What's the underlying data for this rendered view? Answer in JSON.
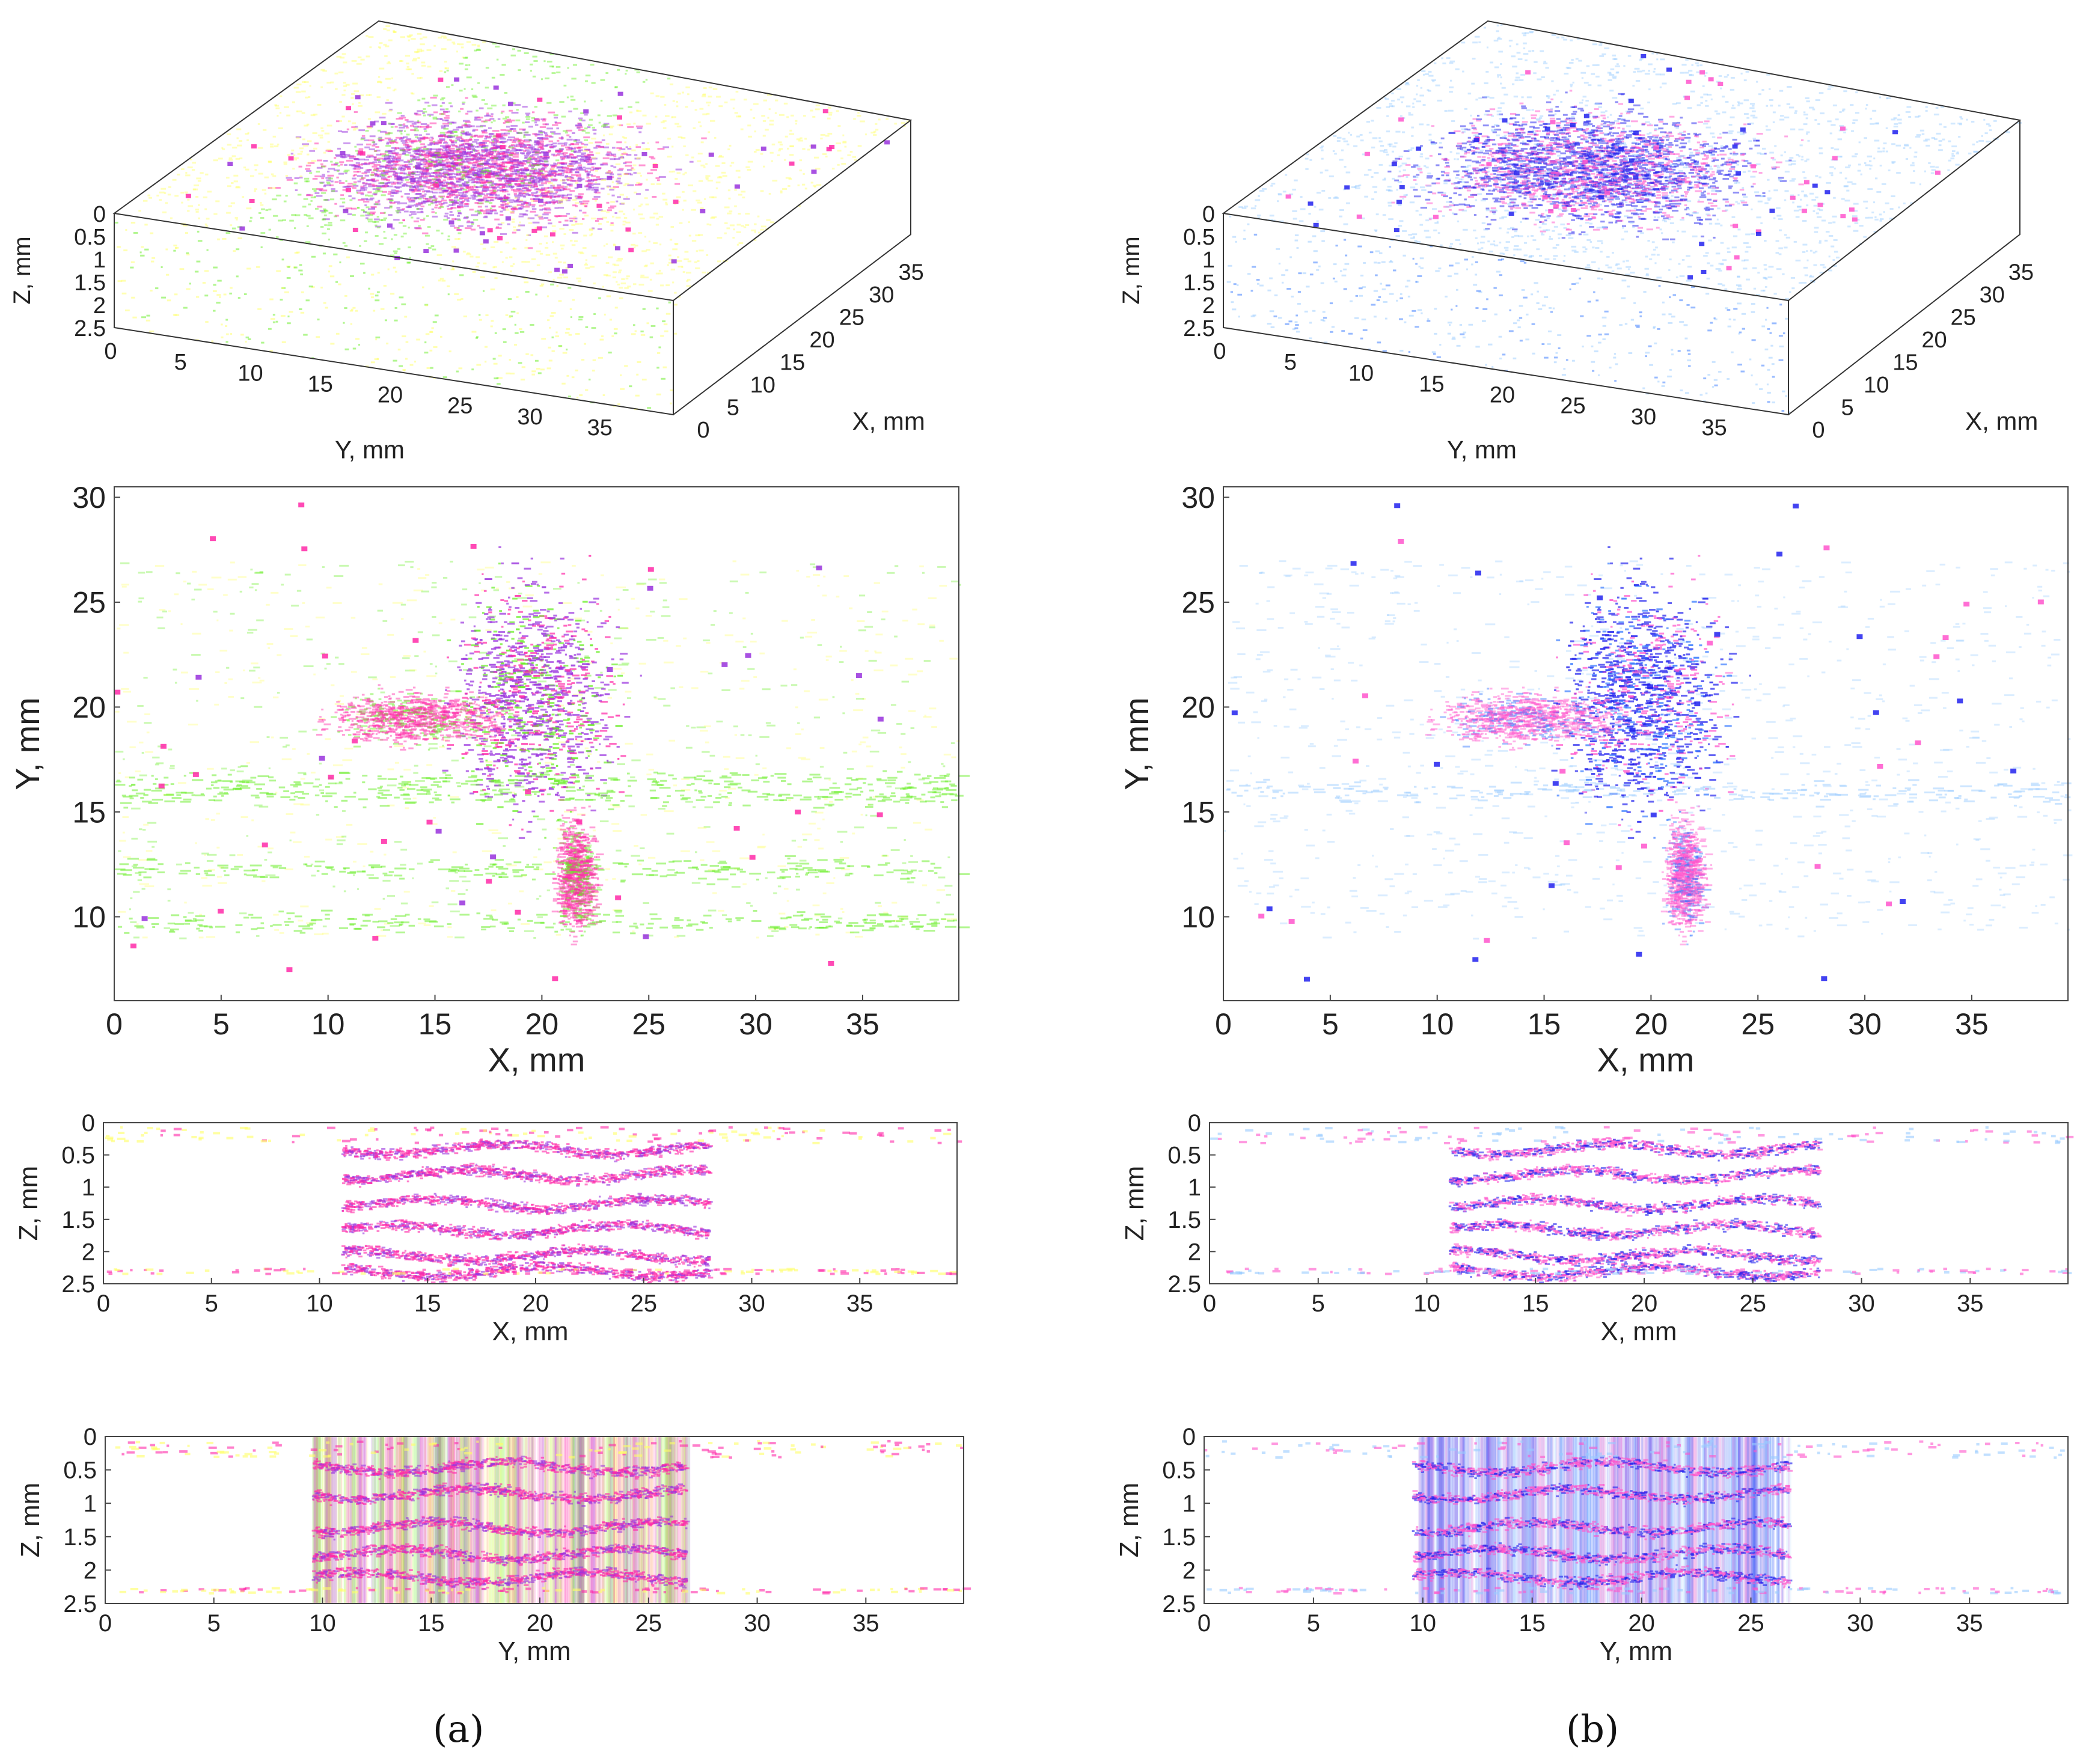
{
  "captions": {
    "a": "(a)",
    "b": "(b)"
  },
  "colors": {
    "a": {
      "low": "#ffff66",
      "mid": "#66ee22",
      "high": "#ff2aa8",
      "core": "#9933dd"
    },
    "b": {
      "low": "#99ccff",
      "mid": "#3377ff",
      "high": "#ff55cc",
      "core": "#2222ee"
    },
    "axis": "#444444",
    "box": "#333333"
  },
  "chart_data": [
    {
      "id": "a-3d",
      "column": "a",
      "type": "scatter",
      "title": "",
      "xlabel": "X, mm",
      "ylabel": "Y, mm",
      "zlabel": "Z, mm",
      "x_ticks": [
        "0",
        "5",
        "10",
        "15",
        "20",
        "25",
        "30",
        "35"
      ],
      "y_ticks": [
        "0",
        "5",
        "10",
        "15",
        "20",
        "25",
        "30",
        "35"
      ],
      "z_ticks": [
        "0",
        "0.5",
        "1",
        "1.5",
        "2",
        "2.5"
      ],
      "xlim": [
        0,
        40
      ],
      "ylim": [
        0,
        40
      ],
      "zlim": [
        0,
        2.5
      ]
    },
    {
      "id": "b-3d",
      "column": "b",
      "type": "scatter",
      "title": "",
      "xlabel": "X, mm",
      "ylabel": "Y, mm",
      "zlabel": "Z, mm",
      "x_ticks": [
        "0",
        "5",
        "10",
        "15",
        "20",
        "25",
        "30",
        "35"
      ],
      "y_ticks": [
        "0",
        "5",
        "10",
        "15",
        "20",
        "25",
        "30",
        "35"
      ],
      "z_ticks": [
        "0",
        "0.5",
        "1",
        "1.5",
        "2",
        "2.5"
      ],
      "xlim": [
        0,
        40
      ],
      "ylim": [
        0,
        40
      ],
      "zlim": [
        0,
        2.5
      ]
    },
    {
      "id": "a-xy",
      "column": "a",
      "type": "heatmap",
      "xlabel": "X, mm",
      "ylabel": "Y, mm",
      "x_ticks": [
        "0",
        "5",
        "10",
        "15",
        "20",
        "25",
        "30",
        "35"
      ],
      "y_ticks": [
        "10",
        "15",
        "20",
        "25",
        "30"
      ],
      "xlim": [
        0,
        39.5
      ],
      "ylim": [
        6,
        30.5
      ],
      "features": [
        {
          "kind": "blob",
          "x": 19.5,
          "y": 20.5,
          "sx": 3.2,
          "sy": 4.5,
          "level": "core"
        },
        {
          "kind": "blob",
          "x": 14,
          "y": 19.5,
          "sx": 3.5,
          "sy": 1.0,
          "level": "high"
        },
        {
          "kind": "blob",
          "x": 21.5,
          "y": 12,
          "sx": 0.8,
          "sy": 2.2,
          "level": "high"
        },
        {
          "kind": "band",
          "y": 12.3,
          "level": "mid"
        },
        {
          "kind": "band",
          "y": 9.8,
          "level": "mid"
        },
        {
          "kind": "band",
          "y": 16.5,
          "level": "mid"
        },
        {
          "kind": "band",
          "y": 15.8,
          "level": "mid"
        }
      ]
    },
    {
      "id": "b-xy",
      "column": "b",
      "type": "heatmap",
      "xlabel": "X, mm",
      "ylabel": "Y, mm",
      "x_ticks": [
        "0",
        "5",
        "10",
        "15",
        "20",
        "25",
        "30",
        "35"
      ],
      "y_ticks": [
        "10",
        "15",
        "20",
        "25",
        "30"
      ],
      "xlim": [
        0,
        39.5
      ],
      "ylim": [
        6,
        30.5
      ],
      "features": [
        {
          "kind": "blob",
          "x": 19.5,
          "y": 20.5,
          "sx": 3.2,
          "sy": 4.5,
          "level": "core"
        },
        {
          "kind": "blob",
          "x": 14,
          "y": 19.5,
          "sx": 3.5,
          "sy": 1.0,
          "level": "high"
        },
        {
          "kind": "blob",
          "x": 21.5,
          "y": 12,
          "sx": 0.8,
          "sy": 2.2,
          "level": "high"
        },
        {
          "kind": "band",
          "y": 16.0,
          "level": "low"
        }
      ]
    },
    {
      "id": "a-xz",
      "column": "a",
      "type": "heatmap",
      "xlabel": "X, mm",
      "ylabel": "Z, mm",
      "x_ticks": [
        "0",
        "5",
        "10",
        "15",
        "20",
        "25",
        "30",
        "35"
      ],
      "y_ticks": [
        "0",
        "0.5",
        "1",
        "1.5",
        "2",
        "2.5"
      ],
      "xlim": [
        0,
        39.5
      ],
      "ylim": [
        0,
        2.5
      ],
      "layers": [
        0.4,
        0.8,
        1.25,
        1.65,
        2.05,
        2.3
      ]
    },
    {
      "id": "b-xz",
      "column": "b",
      "type": "heatmap",
      "xlabel": "X, mm",
      "ylabel": "Z, mm",
      "x_ticks": [
        "0",
        "5",
        "10",
        "15",
        "20",
        "25",
        "30",
        "35"
      ],
      "y_ticks": [
        "0",
        "0.5",
        "1",
        "1.5",
        "2",
        "2.5"
      ],
      "xlim": [
        0,
        39.5
      ],
      "ylim": [
        0,
        2.5
      ],
      "layers": [
        0.4,
        0.8,
        1.25,
        1.65,
        2.05,
        2.3
      ]
    },
    {
      "id": "a-yz",
      "column": "a",
      "type": "heatmap",
      "xlabel": "Y, mm",
      "ylabel": "Z, mm",
      "x_ticks": [
        "0",
        "5",
        "10",
        "15",
        "20",
        "25",
        "30",
        "35"
      ],
      "y_ticks": [
        "0",
        "0.5",
        "1",
        "1.5",
        "2",
        "2.5"
      ],
      "xlim": [
        0,
        39.5
      ],
      "ylim": [
        0,
        2.5
      ],
      "layers": [
        0.45,
        0.85,
        1.35,
        1.75,
        2.1
      ],
      "damage_span": [
        9.5,
        26.7
      ]
    },
    {
      "id": "b-yz",
      "column": "b",
      "type": "heatmap",
      "xlabel": "Y, mm",
      "ylabel": "Z, mm",
      "x_ticks": [
        "0",
        "5",
        "10",
        "15",
        "20",
        "25",
        "30",
        "35"
      ],
      "y_ticks": [
        "0",
        "0.5",
        "1",
        "1.5",
        "2",
        "2.5"
      ],
      "xlim": [
        0,
        39.5
      ],
      "ylim": [
        0,
        2.5
      ],
      "layers": [
        0.45,
        0.85,
        1.35,
        1.75,
        2.1
      ],
      "damage_span": [
        9.5,
        26.7
      ]
    }
  ]
}
